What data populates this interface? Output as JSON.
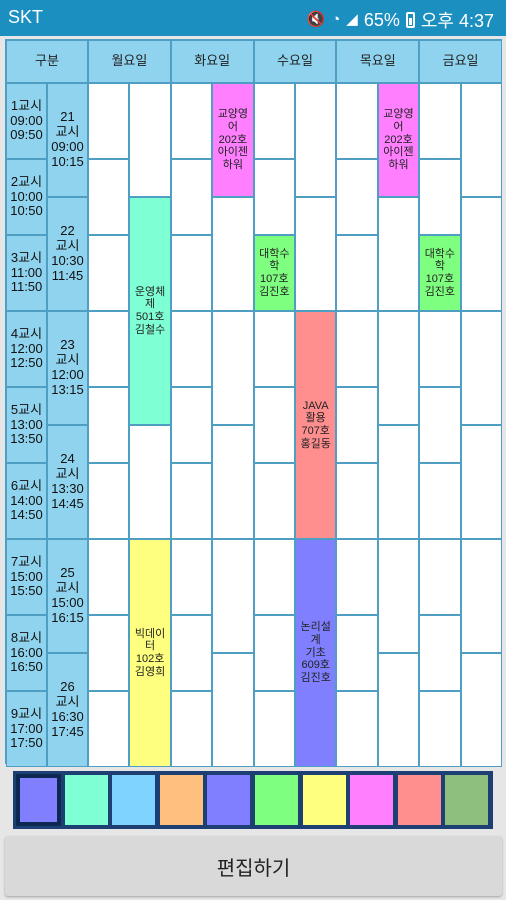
{
  "status_bar": {
    "carrier": "SKT",
    "battery": "65%",
    "time": "오후 4:37"
  },
  "timetable": {
    "headers": [
      "구분",
      "월요일",
      "화요일",
      "수요일",
      "목요일",
      "금요일"
    ],
    "periods": [
      "1교시\n09:00\n09:50",
      "2교시\n10:00\n10:50",
      "3교시\n11:00\n11:50",
      "4교시\n12:00\n12:50",
      "5교시\n13:00\n13:50",
      "6교시\n14:00\n14:50",
      "7교시\n15:00\n15:50",
      "8교시\n16:00\n16:50",
      "9교시\n17:00\n17:50"
    ],
    "blocks": [
      "21\n교시\n09:00\n10:15",
      "22\n교시\n10:30\n11:45",
      "23\n교시\n12:00\n13:15",
      "24\n교시\n13:30\n14:45",
      "25\n교시\n15:00\n16:15",
      "26\n교시\n16:30\n17:45"
    ],
    "classes": [
      {
        "text": "교양영어\n202호\n아이젠하워",
        "color": "#ff7fff",
        "day": 1,
        "half": 1,
        "start": 0,
        "end": 1.5
      },
      {
        "text": "교양영어\n202호\n아이젠하워",
        "color": "#ff7fff",
        "day": 3,
        "half": 1,
        "start": 0,
        "end": 1.5
      },
      {
        "text": "운영체제\n501호\n김철수",
        "color": "#7fffd4",
        "day": 0,
        "half": 1,
        "start": 1.5,
        "end": 4.5
      },
      {
        "text": "대학수학\n107호\n김진호",
        "color": "#7fff7f",
        "day": 2,
        "half": 0,
        "start": 2,
        "end": 3
      },
      {
        "text": "대학수학\n107호\n김진호",
        "color": "#7fff7f",
        "day": 4,
        "half": 0,
        "start": 2,
        "end": 3
      },
      {
        "text": "JAVA활용\n707호\n홍길동",
        "color": "#ff8f8f",
        "day": 2,
        "half": 1,
        "start": 3,
        "end": 6
      },
      {
        "text": "빅데이터\n102호\n김영희",
        "color": "#ffff7f",
        "day": 0,
        "half": 1,
        "start": 6,
        "end": 9
      },
      {
        "text": "논리설계\n기초\n609호\n김진호",
        "color": "#7f7fff",
        "day": 2,
        "half": 1,
        "start": 6,
        "end": 9
      }
    ]
  },
  "palette": [
    "#7f7fff",
    "#7fffd4",
    "#7fd4ff",
    "#ffbf7f",
    "#7f7fff",
    "#7fff7f",
    "#ffff7f",
    "#ff7fff",
    "#ff8f8f",
    "#8fbf7f"
  ],
  "selected_color_index": 0,
  "edit_button_label": "편집하기"
}
